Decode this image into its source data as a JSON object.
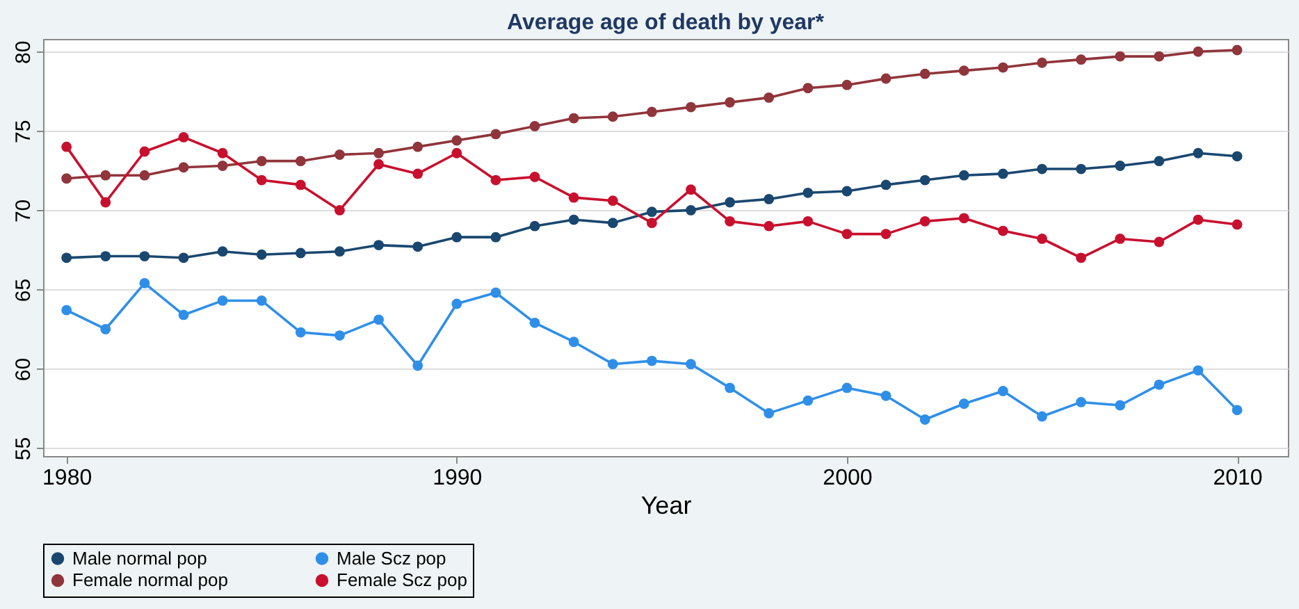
{
  "chart_data": {
    "type": "line",
    "title": "Average age of death by year*",
    "xlabel": "Year",
    "x": [
      1980,
      1981,
      1982,
      1983,
      1984,
      1985,
      1986,
      1987,
      1988,
      1989,
      1990,
      1991,
      1992,
      1993,
      1994,
      1995,
      1996,
      1997,
      1998,
      1999,
      2000,
      2001,
      2002,
      2003,
      2004,
      2005,
      2006,
      2007,
      2008,
      2009,
      2010
    ],
    "series": [
      {
        "name": "Male normal pop",
        "color": "#1a476f",
        "values": [
          67.0,
          67.1,
          67.1,
          67.0,
          67.4,
          67.2,
          67.3,
          67.4,
          67.8,
          67.7,
          68.3,
          68.3,
          69.0,
          69.4,
          69.2,
          69.9,
          70.0,
          70.5,
          70.7,
          71.1,
          71.2,
          71.6,
          71.9,
          72.2,
          72.3,
          72.6,
          72.6,
          72.8,
          73.1,
          73.6,
          73.4
        ]
      },
      {
        "name": "Male Scz pop",
        "color": "#2f8fe8",
        "values": [
          63.7,
          62.5,
          65.4,
          63.4,
          64.3,
          64.3,
          62.3,
          62.1,
          63.1,
          60.2,
          64.1,
          64.8,
          62.9,
          61.7,
          60.3,
          60.5,
          60.3,
          58.8,
          57.2,
          58.0,
          58.8,
          58.3,
          56.8,
          57.8,
          58.6,
          57.0,
          57.9,
          57.7,
          59.0,
          59.9,
          57.4
        ]
      },
      {
        "name": "Female normal pop",
        "color": "#90353b",
        "values": [
          72.0,
          72.2,
          72.2,
          72.7,
          72.8,
          73.1,
          73.1,
          73.5,
          73.6,
          74.0,
          74.4,
          74.8,
          75.3,
          75.8,
          75.9,
          76.2,
          76.5,
          76.8,
          77.1,
          77.7,
          77.9,
          78.3,
          78.6,
          78.8,
          79.0,
          79.3,
          79.5,
          79.7,
          79.7,
          80.0,
          80.1
        ]
      },
      {
        "name": "Female Scz pop",
        "color": "#c8102e",
        "values": [
          74.0,
          70.5,
          73.7,
          74.6,
          73.6,
          71.9,
          71.6,
          70.0,
          72.9,
          72.3,
          73.6,
          71.9,
          72.1,
          70.8,
          70.6,
          69.2,
          71.3,
          69.3,
          69.0,
          69.3,
          68.5,
          68.5,
          69.3,
          69.5,
          68.7,
          68.2,
          67.0,
          68.2,
          68.0,
          69.4,
          69.1
        ]
      }
    ],
    "xlim": [
      1979.4,
      2011.3
    ],
    "xticks": [
      1980,
      1990,
      2000,
      2010
    ],
    "ylim": [
      54.5,
      80.8
    ],
    "yticks": [
      55,
      60,
      65,
      70,
      75,
      80
    ],
    "grid": "y",
    "legend": "bottom",
    "marker": "circle",
    "line_style": "solid"
  }
}
